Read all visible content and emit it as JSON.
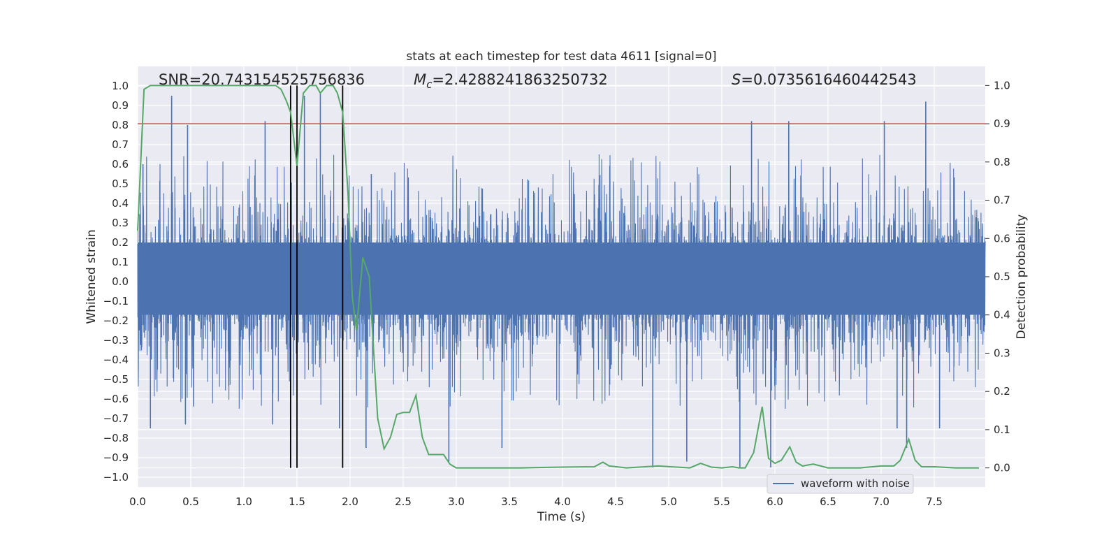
{
  "chart_data": {
    "type": "line",
    "title": "stats at each timestep for test data 4611 [signal=0]",
    "xlabel": "Time (s)",
    "ylabel_left": "Whitened strain",
    "ylabel_right": "Detection probability",
    "xlim": [
      0.0,
      7.98
    ],
    "ylim_left": [
      -1.05,
      1.1
    ],
    "ylim_right": [
      -0.05,
      1.05
    ],
    "x_ticks": [
      "0.0",
      "0.5",
      "1.0",
      "1.5",
      "2.0",
      "2.5",
      "3.0",
      "3.5",
      "4.0",
      "4.5",
      "5.0",
      "5.5",
      "6.0",
      "6.5",
      "7.0",
      "7.5"
    ],
    "y_ticks_left": [
      "-1.0",
      "-0.9",
      "-0.8",
      "-0.7",
      "-0.6",
      "-0.5",
      "-0.4",
      "-0.3",
      "-0.2",
      "-0.1",
      "0.0",
      "0.1",
      "0.2",
      "0.3",
      "0.4",
      "0.5",
      "0.6",
      "0.7",
      "0.8",
      "0.9",
      "1.0"
    ],
    "y_ticks_right": [
      "0.0",
      "0.1",
      "0.2",
      "0.3",
      "0.4",
      "0.5",
      "0.6",
      "0.7",
      "0.8",
      "0.9",
      "1.0"
    ],
    "grid": true,
    "annotations": {
      "snr": "SNR=20.743154525756836",
      "mc_symbol": "M",
      "mc_subscript": "c",
      "mc_value": "=2.4288241863250732",
      "s_symbol": "S",
      "s_value": "=0.0735616460442543"
    },
    "threshold": {
      "value": 0.9,
      "axis": "right",
      "color": "#c44e52"
    },
    "vertical_markers": [
      1.44,
      1.5,
      1.93
    ],
    "waveform": {
      "name": "waveform with noise",
      "color": "#4c72b0",
      "envelope_typical": 0.4,
      "spikes": [
        {
          "x": 0.05,
          "y": 0.6
        },
        {
          "x": 0.12,
          "y": -0.75
        },
        {
          "x": 0.32,
          "y": 0.95
        },
        {
          "x": 0.45,
          "y": -0.73
        },
        {
          "x": 0.47,
          "y": 0.8
        },
        {
          "x": 0.79,
          "y": 0.08
        },
        {
          "x": 1.2,
          "y": 0.82
        },
        {
          "x": 1.27,
          "y": -0.73
        },
        {
          "x": 1.57,
          "y": 0.95
        },
        {
          "x": 1.72,
          "y": 0.97
        },
        {
          "x": 1.9,
          "y": -0.75
        },
        {
          "x": 2.15,
          "y": -0.85
        },
        {
          "x": 2.2,
          "y": 0.55
        },
        {
          "x": 2.93,
          "y": -0.92
        },
        {
          "x": 3.43,
          "y": -0.85
        },
        {
          "x": 4.85,
          "y": -0.95
        },
        {
          "x": 5.17,
          "y": -0.92
        },
        {
          "x": 5.67,
          "y": -0.95
        },
        {
          "x": 5.78,
          "y": 0.82
        },
        {
          "x": 5.96,
          "y": -0.95
        },
        {
          "x": 6.13,
          "y": 0.82
        },
        {
          "x": 7.03,
          "y": 0.82
        },
        {
          "x": 7.15,
          "y": -0.75
        },
        {
          "x": 7.24,
          "y": -0.85
        },
        {
          "x": 7.42,
          "y": 0.92
        },
        {
          "x": 7.55,
          "y": -0.75
        }
      ]
    },
    "probability": {
      "name": "detection probability",
      "color": "#55a868",
      "x": [
        0.0,
        0.06,
        0.12,
        0.18,
        0.3,
        0.5,
        0.8,
        1.0,
        1.2,
        1.3,
        1.35,
        1.4,
        1.44,
        1.5,
        1.56,
        1.62,
        1.68,
        1.72,
        1.78,
        1.84,
        1.88,
        1.93,
        1.98,
        2.02,
        2.06,
        2.12,
        2.18,
        2.26,
        2.32,
        2.38,
        2.44,
        2.5,
        2.56,
        2.62,
        2.68,
        2.74,
        2.8,
        2.88,
        2.94,
        3.0,
        3.3,
        3.6,
        4.0,
        4.3,
        4.38,
        4.44,
        4.6,
        4.9,
        5.2,
        5.3,
        5.4,
        5.5,
        5.6,
        5.66,
        5.72,
        5.8,
        5.88,
        5.94,
        6.0,
        6.06,
        6.14,
        6.2,
        6.26,
        6.36,
        6.5,
        6.8,
        7.0,
        7.12,
        7.18,
        7.26,
        7.32,
        7.38,
        7.5,
        7.7,
        7.92
      ],
      "y": [
        0.62,
        0.99,
        1.0,
        1.0,
        1.0,
        1.0,
        1.0,
        1.0,
        1.0,
        1.0,
        0.99,
        0.96,
        0.93,
        0.79,
        0.98,
        1.0,
        1.0,
        0.98,
        1.0,
        1.0,
        0.98,
        0.93,
        0.72,
        0.45,
        0.36,
        0.55,
        0.5,
        0.13,
        0.05,
        0.08,
        0.14,
        0.145,
        0.145,
        0.19,
        0.08,
        0.035,
        0.035,
        0.035,
        0.01,
        0.0,
        0.0,
        0.0,
        0.002,
        0.003,
        0.015,
        0.005,
        0.0,
        0.005,
        0.0,
        0.012,
        0.002,
        0.0,
        0.003,
        0.0,
        0.0,
        0.04,
        0.16,
        0.025,
        0.012,
        0.02,
        0.055,
        0.015,
        0.005,
        0.01,
        0.0,
        0.0,
        0.005,
        0.005,
        0.02,
        0.075,
        0.02,
        0.003,
        0.003,
        0.0,
        0.0
      ]
    },
    "legend": {
      "entries": [
        "waveform with noise"
      ],
      "position": "lower-right"
    }
  }
}
